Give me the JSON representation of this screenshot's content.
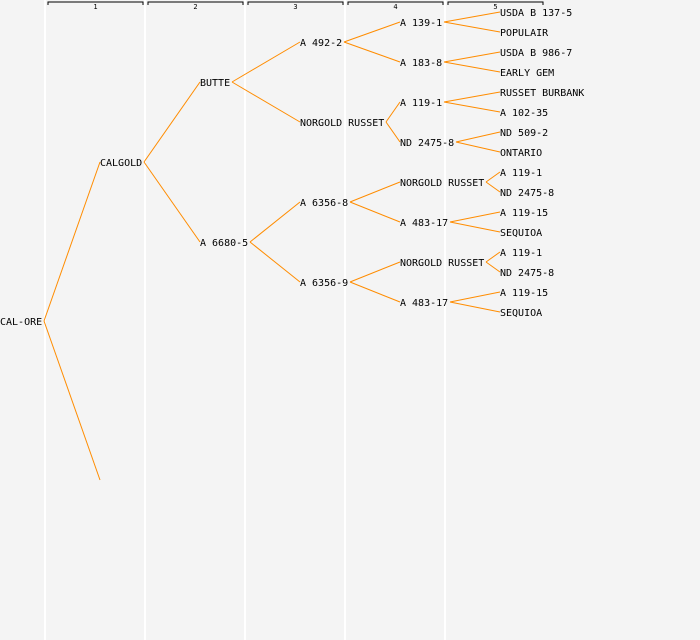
{
  "generations": [
    "1",
    "2",
    "3",
    "4",
    "5"
  ],
  "colors": {
    "background": "#f4f4f4",
    "edge": "#ff8c00",
    "column_divider": "#ffffff",
    "text": "#000000"
  },
  "tree": {
    "root": "CAL-ORE",
    "nodes": [
      {
        "id": "n0",
        "label": "CAL-ORE",
        "generation": 0,
        "parent": null
      },
      {
        "id": "n1",
        "label": "CALGOLD",
        "generation": 1,
        "parent": "n0"
      },
      {
        "id": "n1b",
        "label": "",
        "generation": 1,
        "parent": "n0"
      },
      {
        "id": "n2",
        "label": "BUTTE",
        "generation": 2,
        "parent": "n1"
      },
      {
        "id": "n3",
        "label": "A 6680-5",
        "generation": 2,
        "parent": "n1"
      },
      {
        "id": "n4",
        "label": "A 492-2",
        "generation": 3,
        "parent": "n2"
      },
      {
        "id": "n5",
        "label": "NORGOLD RUSSET",
        "generation": 3,
        "parent": "n2"
      },
      {
        "id": "n6",
        "label": "A 6356-8",
        "generation": 3,
        "parent": "n3"
      },
      {
        "id": "n7",
        "label": "A 6356-9",
        "generation": 3,
        "parent": "n3"
      },
      {
        "id": "n8",
        "label": "A 139-1",
        "generation": 4,
        "parent": "n4"
      },
      {
        "id": "n9",
        "label": "A 183-8",
        "generation": 4,
        "parent": "n4"
      },
      {
        "id": "n10",
        "label": "A 119-1",
        "generation": 4,
        "parent": "n5"
      },
      {
        "id": "n11",
        "label": "ND 2475-8",
        "generation": 4,
        "parent": "n5"
      },
      {
        "id": "n12",
        "label": "NORGOLD RUSSET",
        "generation": 4,
        "parent": "n6"
      },
      {
        "id": "n13",
        "label": "A 483-17",
        "generation": 4,
        "parent": "n6"
      },
      {
        "id": "n14",
        "label": "NORGOLD RUSSET",
        "generation": 4,
        "parent": "n7"
      },
      {
        "id": "n15",
        "label": "A 483-17",
        "generation": 4,
        "parent": "n7"
      },
      {
        "id": "n16",
        "label": "USDA B 137-5",
        "generation": 5,
        "parent": "n8"
      },
      {
        "id": "n17",
        "label": "POPULAIR",
        "generation": 5,
        "parent": "n8"
      },
      {
        "id": "n18",
        "label": "USDA B 986-7",
        "generation": 5,
        "parent": "n9"
      },
      {
        "id": "n19",
        "label": "EARLY GEM",
        "generation": 5,
        "parent": "n9"
      },
      {
        "id": "n20",
        "label": "RUSSET BURBANK",
        "generation": 5,
        "parent": "n10"
      },
      {
        "id": "n21",
        "label": "A 102-35",
        "generation": 5,
        "parent": "n10"
      },
      {
        "id": "n22",
        "label": "ND 509-2",
        "generation": 5,
        "parent": "n11"
      },
      {
        "id": "n23",
        "label": "ONTARIO",
        "generation": 5,
        "parent": "n11"
      },
      {
        "id": "n24",
        "label": "A 119-1",
        "generation": 5,
        "parent": "n12"
      },
      {
        "id": "n25",
        "label": "ND 2475-8",
        "generation": 5,
        "parent": "n12"
      },
      {
        "id": "n26",
        "label": "A 119-15",
        "generation": 5,
        "parent": "n13"
      },
      {
        "id": "n27",
        "label": "SEQUIOA",
        "generation": 5,
        "parent": "n13"
      },
      {
        "id": "n28",
        "label": "A 119-1",
        "generation": 5,
        "parent": "n14"
      },
      {
        "id": "n29",
        "label": "ND 2475-8",
        "generation": 5,
        "parent": "n14"
      },
      {
        "id": "n30",
        "label": "A 119-15",
        "generation": 5,
        "parent": "n15"
      },
      {
        "id": "n31",
        "label": "SEQUIOA",
        "generation": 5,
        "parent": "n15"
      }
    ]
  }
}
